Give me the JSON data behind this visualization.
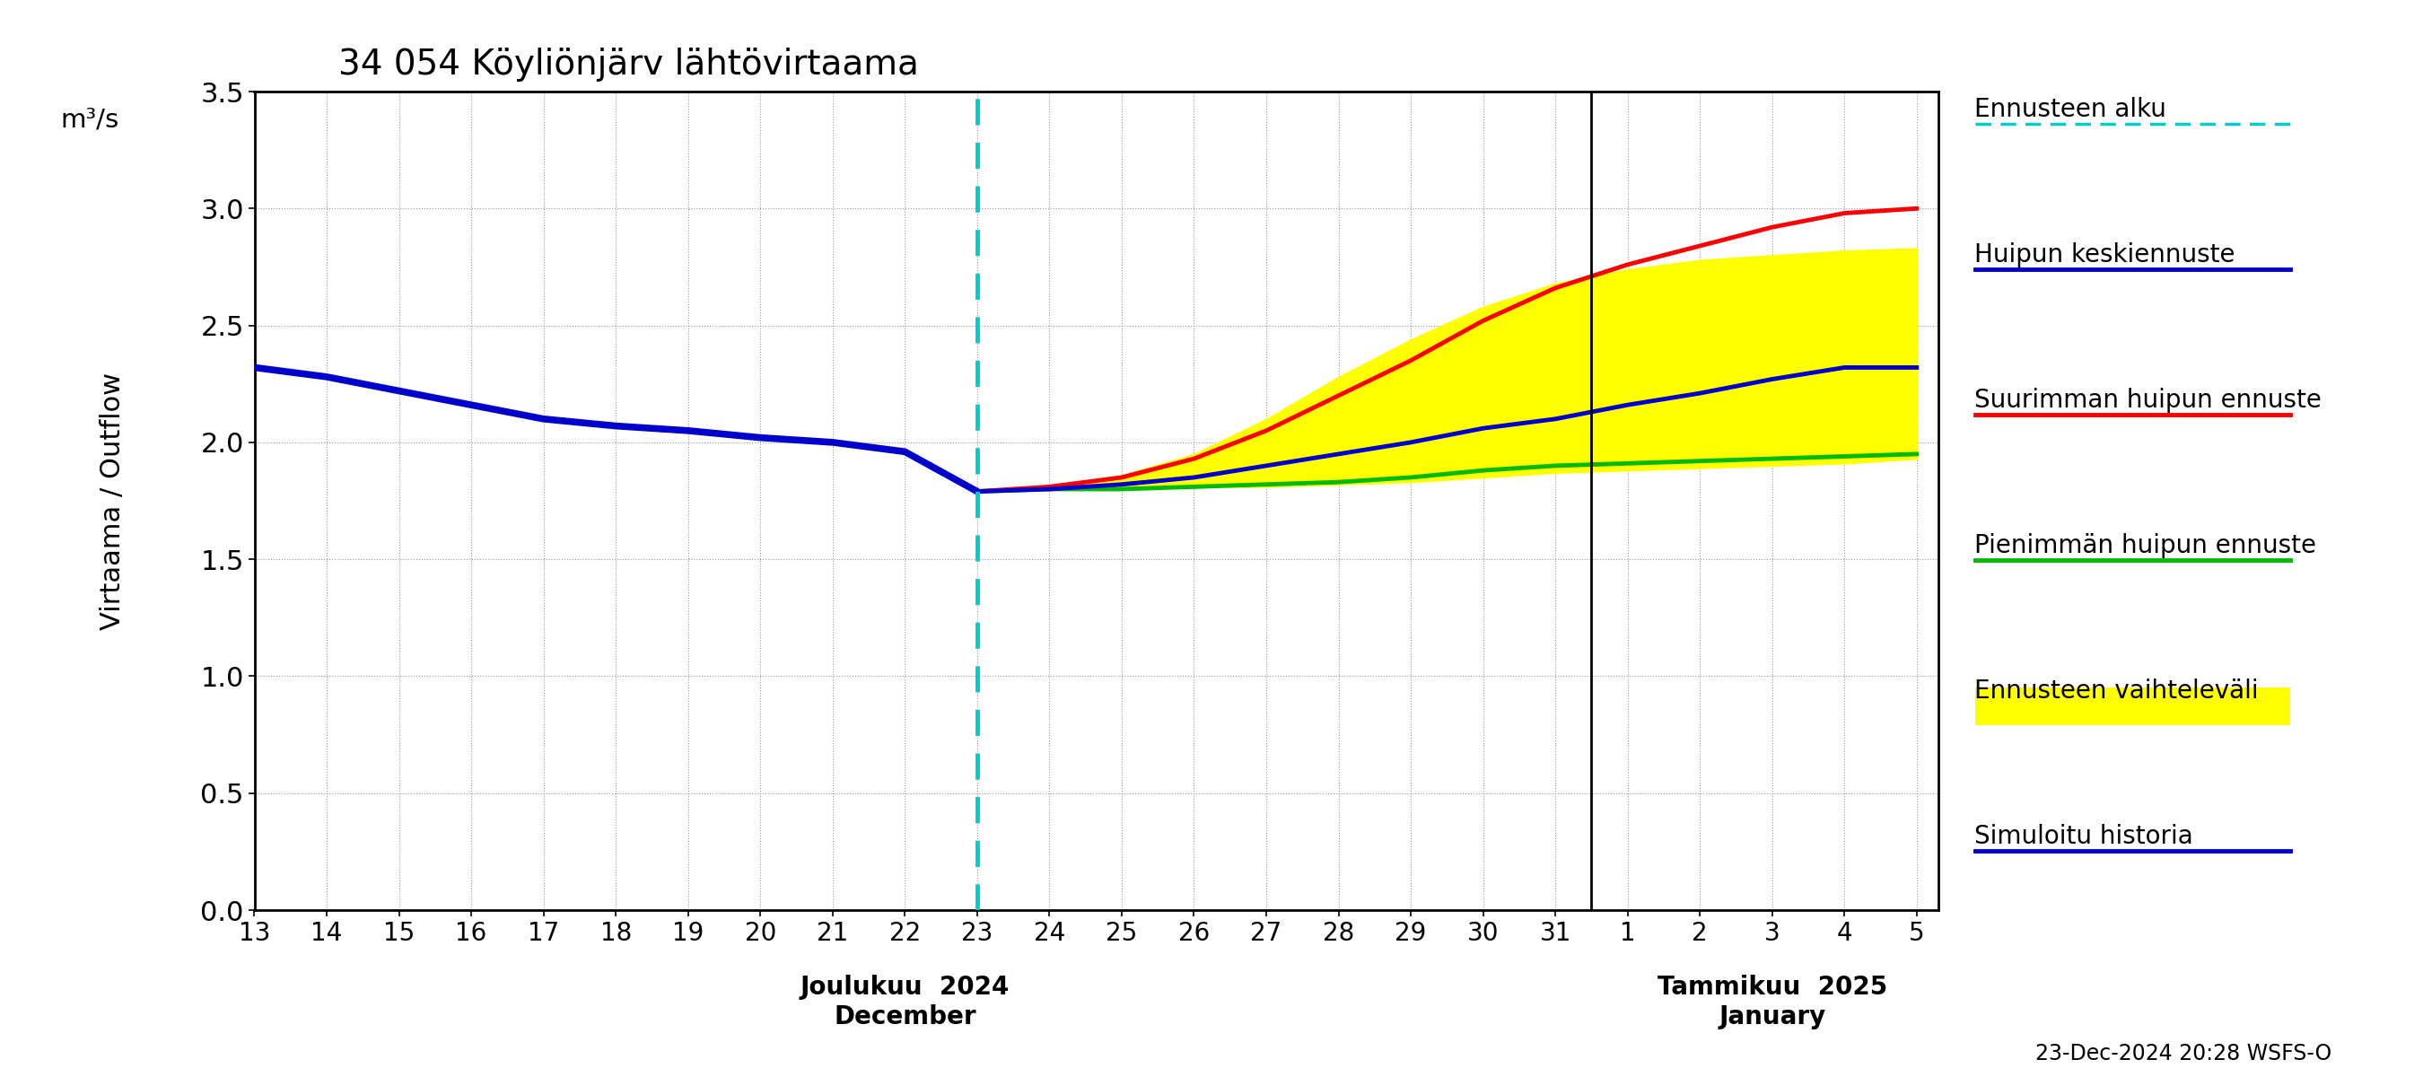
{
  "title": "34 054 Köyliönjärv lähtövirtaama",
  "ylabel_top": "m³/s",
  "ylabel_main": "Virtaama / Outflow",
  "xlabel_left": "Joulukuu  2024\nDecember",
  "xlabel_right": "Tammikuu  2025\nJanuary",
  "footnote": "23-Dec-2024 20:28 WSFS-O",
  "ylim": [
    0.0,
    3.5
  ],
  "yticks": [
    0.0,
    0.5,
    1.0,
    1.5,
    2.0,
    2.5,
    3.0,
    3.5
  ],
  "background_color": "#ffffff",
  "plot_bg_color": "#ffffff",
  "legend_entries": [
    "Ennusteen alku",
    "Huipun keskiennuste",
    "Suurimman huipun ennuste",
    "Pienimmän huipun ennuste",
    "Ennusteen vaihteleväli",
    "Simuloitu historia"
  ],
  "history_color": "#0000cc",
  "mean_color": "#0000cc",
  "max_color": "#ff0000",
  "min_color": "#00bb00",
  "band_color": "#ffff00",
  "vline_color": "#00cccc",
  "history_x": [
    13,
    14,
    15,
    16,
    17,
    18,
    19,
    20,
    21,
    22,
    23
  ],
  "history_y": [
    2.32,
    2.28,
    2.22,
    2.16,
    2.1,
    2.07,
    2.05,
    2.02,
    2.0,
    1.96,
    1.79
  ],
  "forecast_x": [
    23,
    24,
    25,
    26,
    27,
    28,
    29,
    30,
    31,
    32,
    33,
    34,
    35,
    36
  ],
  "mean_y": [
    1.79,
    1.8,
    1.82,
    1.85,
    1.9,
    1.95,
    2.0,
    2.06,
    2.1,
    2.16,
    2.21,
    2.27,
    2.32,
    2.32
  ],
  "max_y": [
    1.79,
    1.81,
    1.85,
    1.93,
    2.05,
    2.2,
    2.35,
    2.52,
    2.66,
    2.76,
    2.84,
    2.92,
    2.98,
    3.0
  ],
  "min_y": [
    1.79,
    1.8,
    1.8,
    1.81,
    1.82,
    1.83,
    1.85,
    1.88,
    1.9,
    1.91,
    1.92,
    1.93,
    1.94,
    1.95
  ],
  "band_upper": [
    1.79,
    1.81,
    1.86,
    1.95,
    2.1,
    2.28,
    2.44,
    2.58,
    2.68,
    2.74,
    2.78,
    2.8,
    2.82,
    2.83
  ],
  "band_lower": [
    1.79,
    1.8,
    1.8,
    1.81,
    1.81,
    1.82,
    1.83,
    1.85,
    1.87,
    1.88,
    1.89,
    1.9,
    1.91,
    1.93
  ],
  "vline_x": 23,
  "tick_labels_dec": [
    "13",
    "14",
    "15",
    "16",
    "17",
    "18",
    "19",
    "20",
    "21",
    "22",
    "23",
    "24",
    "25",
    "26",
    "27",
    "28",
    "29",
    "30",
    "31"
  ],
  "tick_x_dec": [
    13,
    14,
    15,
    16,
    17,
    18,
    19,
    20,
    21,
    22,
    23,
    24,
    25,
    26,
    27,
    28,
    29,
    30,
    31
  ],
  "tick_labels_jan": [
    "1",
    "2",
    "3",
    "4",
    "5"
  ],
  "tick_x_jan": [
    32,
    33,
    34,
    35,
    36
  ],
  "month_sep_x": 31.5,
  "xlim_left": 13,
  "xlim_right": 36.3
}
